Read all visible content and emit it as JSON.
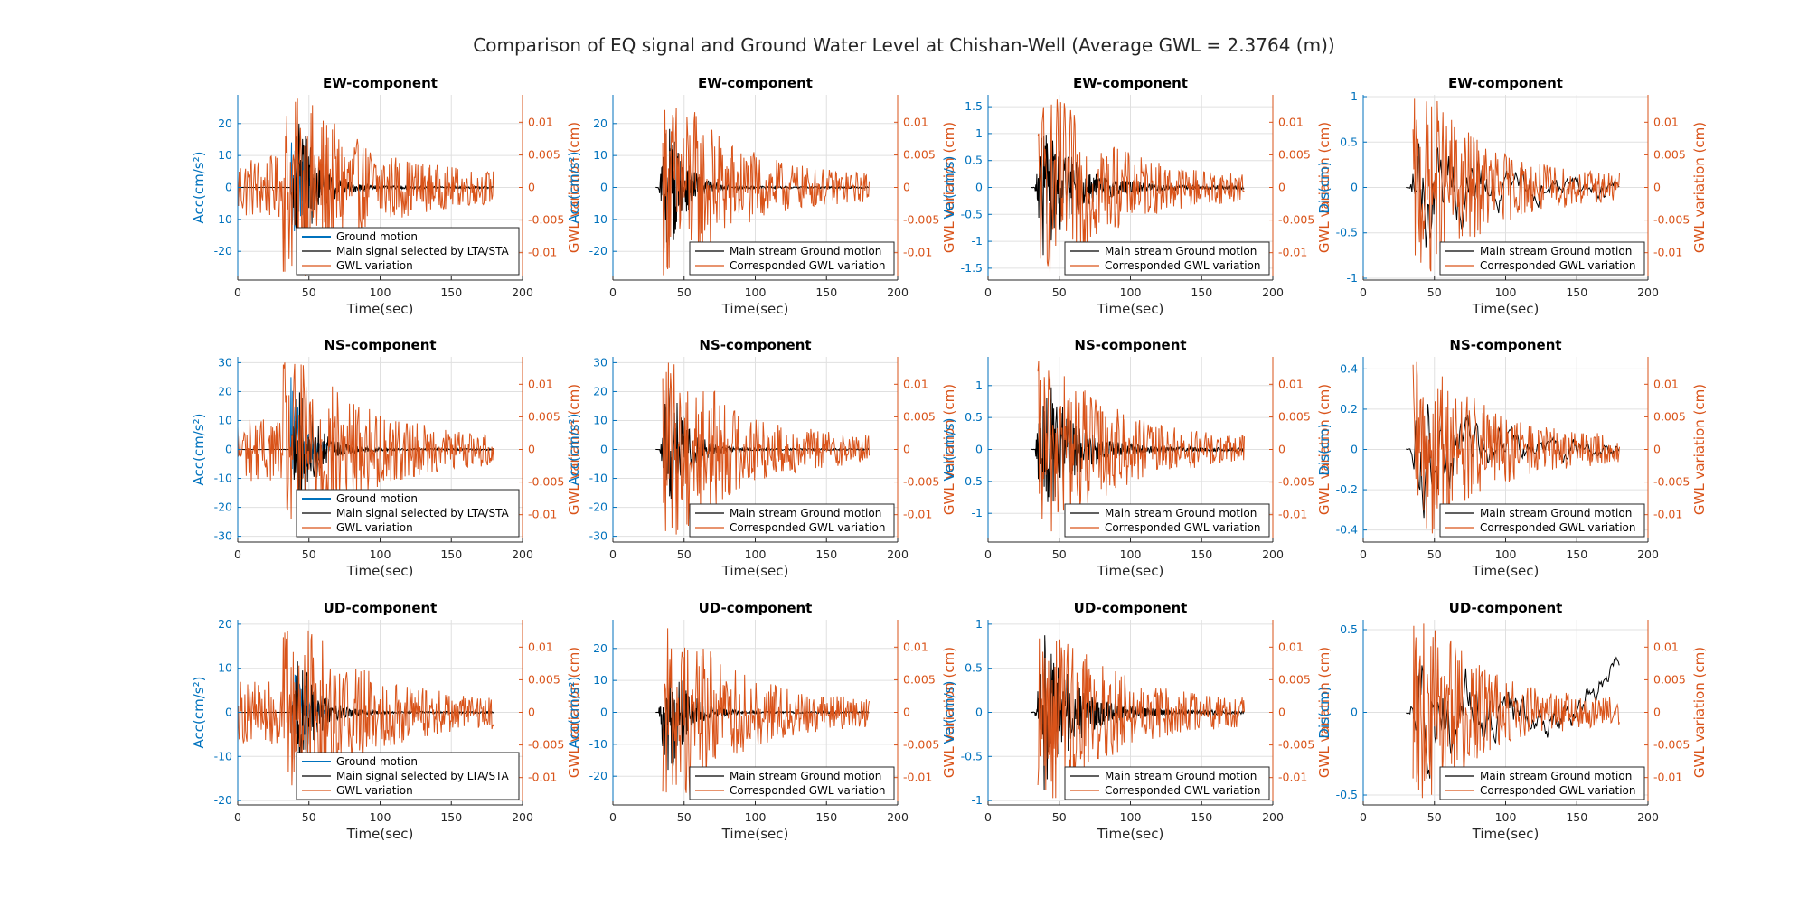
{
  "figure": {
    "title": "Comparison of EQ signal and Ground Water Level at Chishan-Well (Average GWL = 2.3764 (m))"
  },
  "colors": {
    "left_axis": "#0072BD",
    "right_axis": "#D95319",
    "ground_motion_blue": "#0072BD",
    "main_signal": "#000000",
    "gwl": "#D95319",
    "grid": "#E0E0E0"
  },
  "chart_data": [
    {
      "type": "line",
      "component": "EW",
      "title": "EW-component",
      "xlabel": "Time(sec)",
      "ylabel_left": "Acc(cm/s²)",
      "ylabel_right": "GWL variation (cm)",
      "xlim": [
        0,
        200
      ],
      "ylim_left": [
        -29,
        29
      ],
      "ylim_right": [
        -0.0142,
        0.0142
      ],
      "xticks": [
        0,
        50,
        100,
        150,
        200
      ],
      "yticks_left": [
        -20,
        -10,
        0,
        10,
        20
      ],
      "yticks_right": [
        -0.01,
        -0.005,
        0,
        0.005,
        0.01
      ],
      "ytick_labels_left": [
        "-20",
        "-10",
        "0",
        "10",
        "20"
      ],
      "ytick_labels_right": [
        "-0.01",
        "-0.005",
        "0",
        "0.005",
        "0.01"
      ],
      "grid": true,
      "legend_location": "bottom-right",
      "signal": {
        "t_start": 0,
        "t_end": 180,
        "onset": 37,
        "peak": 23,
        "decay": 13,
        "trail": 0.9
      },
      "gwl": {
        "t_start": 0,
        "t_end": 180,
        "amp": 0.0118,
        "base": 0.0019,
        "peak_time": 50,
        "decay": 45
      },
      "series": [
        {
          "name": "Ground motion",
          "color": "#0072BD"
        },
        {
          "name": "Main signal selected by LTA/STA",
          "color": "#000000"
        },
        {
          "name": "GWL variation",
          "color": "#D95319"
        }
      ]
    },
    {
      "type": "line",
      "component": "EW",
      "title": "EW-component",
      "xlabel": "Time(sec)",
      "ylabel_left": "Acc(cm/s²)",
      "ylabel_right": "GWL variation (cm)",
      "xlim": [
        0,
        200
      ],
      "ylim_left": [
        -29,
        29
      ],
      "ylim_right": [
        -0.0142,
        0.0142
      ],
      "xticks": [
        0,
        50,
        100,
        150,
        200
      ],
      "yticks_left": [
        -20,
        -10,
        0,
        10,
        20
      ],
      "yticks_right": [
        -0.01,
        -0.005,
        0,
        0.005,
        0.01
      ],
      "ytick_labels_left": [
        "-20",
        "-10",
        "0",
        "10",
        "20"
      ],
      "ytick_labels_right": [
        "-0.01",
        "-0.005",
        "0",
        "0.005",
        "0.01"
      ],
      "grid": true,
      "legend_location": "bottom-right",
      "signal": {
        "t_start": 30,
        "t_end": 180,
        "onset": 32,
        "peak": 24,
        "decay": 12,
        "trail": 0.8
      },
      "gwl": {
        "t_start": 35,
        "t_end": 180,
        "amp": 0.0118,
        "base": 0.0018,
        "peak_time": 52,
        "decay": 40
      },
      "series": [
        {
          "name": "Main stream Ground motion",
          "color": "#000000"
        },
        {
          "name": "Corresponded GWL variation",
          "color": "#D95319"
        }
      ]
    },
    {
      "type": "line",
      "component": "EW",
      "title": "EW-component",
      "xlabel": "Time(sec)",
      "ylabel_left": "Vel(cm/s)",
      "ylabel_right": "GWL variation (cm)",
      "xlim": [
        0,
        200
      ],
      "ylim_left": [
        -1.72,
        1.72
      ],
      "ylim_right": [
        -0.0142,
        0.0142
      ],
      "xticks": [
        0,
        50,
        100,
        150,
        200
      ],
      "yticks_left": [
        -1.5,
        -1,
        -0.5,
        0,
        0.5,
        1,
        1.5
      ],
      "yticks_right": [
        -0.01,
        -0.005,
        0,
        0.005,
        0.01
      ],
      "ytick_labels_left": [
        "-1.5",
        "-1",
        "-0.5",
        "0",
        "0.5",
        "1",
        "1.5"
      ],
      "ytick_labels_right": [
        "-0.01",
        "-0.005",
        "0",
        "0.005",
        "0.01"
      ],
      "grid": true,
      "legend_location": "bottom-right",
      "signal": {
        "t_start": 30,
        "t_end": 180,
        "onset": 33,
        "peak": 1.3,
        "decay": 22,
        "trail": 0.1
      },
      "gwl": {
        "t_start": 35,
        "t_end": 180,
        "amp": 0.0118,
        "base": 0.0018,
        "peak_time": 52,
        "decay": 40
      },
      "series": [
        {
          "name": "Main stream Ground motion",
          "color": "#000000"
        },
        {
          "name": "Corresponded GWL variation",
          "color": "#D95319"
        }
      ]
    },
    {
      "type": "line",
      "component": "EW",
      "title": "EW-component",
      "xlabel": "Time(sec)",
      "ylabel_left": "Dis(cm)",
      "ylabel_right": "GWL variation (cm)",
      "xlim": [
        0,
        200
      ],
      "ylim_left": [
        -1.02,
        1.02
      ],
      "ylim_right": [
        -0.0142,
        0.0142
      ],
      "xticks": [
        0,
        50,
        100,
        150,
        200
      ],
      "yticks_left": [
        -1,
        -0.5,
        0,
        0.5,
        1
      ],
      "yticks_right": [
        -0.01,
        -0.005,
        0,
        0.005,
        0.01
      ],
      "ytick_labels_left": [
        "-1",
        "-0.5",
        "0",
        "0.5",
        "1"
      ],
      "ytick_labels_right": [
        "-0.01",
        "-0.005",
        "0",
        "0.005",
        "0.01"
      ],
      "grid": true,
      "legend_location": "bottom-right",
      "signal": {
        "t_start": 30,
        "t_end": 180,
        "onset": 33,
        "peak": 0.85,
        "decay": 30,
        "trail": 0.25,
        "smooth": true
      },
      "gwl": {
        "t_start": 35,
        "t_end": 180,
        "amp": 0.0118,
        "base": 0.0018,
        "peak_time": 52,
        "decay": 40
      },
      "series": [
        {
          "name": "Main stream Ground motion",
          "color": "#000000"
        },
        {
          "name": "Corresponded GWL variation",
          "color": "#D95319"
        }
      ]
    },
    {
      "type": "line",
      "component": "NS",
      "title": "NS-component",
      "xlabel": "Time(sec)",
      "ylabel_left": "Acc(cm/s²)",
      "ylabel_right": "GWL variation (cm)",
      "xlim": [
        0,
        200
      ],
      "ylim_left": [
        -32,
        32
      ],
      "ylim_right": [
        -0.0142,
        0.0142
      ],
      "xticks": [
        0,
        50,
        100,
        150,
        200
      ],
      "yticks_left": [
        -30,
        -20,
        -10,
        0,
        10,
        20,
        30
      ],
      "yticks_right": [
        -0.01,
        -0.005,
        0,
        0.005,
        0.01
      ],
      "ytick_labels_left": [
        "-30",
        "-20",
        "-10",
        "0",
        "10",
        "20",
        "30"
      ],
      "ytick_labels_right": [
        "-0.01",
        "-0.005",
        "0",
        "0.005",
        "0.01"
      ],
      "grid": true,
      "legend_location": "bottom-right",
      "signal": {
        "t_start": 0,
        "t_end": 180,
        "onset": 37,
        "peak": 27,
        "decay": 12,
        "trail": 0.9
      },
      "gwl": {
        "t_start": 0,
        "t_end": 180,
        "amp": 0.0118,
        "base": 0.0019,
        "peak_time": 50,
        "decay": 45
      },
      "series": [
        {
          "name": "Ground motion",
          "color": "#0072BD"
        },
        {
          "name": "Main signal selected by LTA/STA",
          "color": "#000000"
        },
        {
          "name": "GWL variation",
          "color": "#D95319"
        }
      ]
    },
    {
      "type": "line",
      "component": "NS",
      "title": "NS-component",
      "xlabel": "Time(sec)",
      "ylabel_left": "Acc(cm/s²)",
      "ylabel_right": "GWL variation (cm)",
      "xlim": [
        0,
        200
      ],
      "ylim_left": [
        -32,
        32
      ],
      "ylim_right": [
        -0.0142,
        0.0142
      ],
      "xticks": [
        0,
        50,
        100,
        150,
        200
      ],
      "yticks_left": [
        -30,
        -20,
        -10,
        0,
        10,
        20,
        30
      ],
      "yticks_right": [
        -0.01,
        -0.005,
        0,
        0.005,
        0.01
      ],
      "ytick_labels_left": [
        "-30",
        "-20",
        "-10",
        "0",
        "10",
        "20",
        "30"
      ],
      "ytick_labels_right": [
        "-0.01",
        "-0.005",
        "0",
        "0.005",
        "0.01"
      ],
      "grid": true,
      "legend_location": "bottom-right",
      "signal": {
        "t_start": 30,
        "t_end": 180,
        "onset": 33,
        "peak": 27,
        "decay": 12,
        "trail": 0.8
      },
      "gwl": {
        "t_start": 35,
        "t_end": 180,
        "amp": 0.0118,
        "base": 0.0018,
        "peak_time": 52,
        "decay": 40
      },
      "series": [
        {
          "name": "Main stream Ground motion",
          "color": "#000000"
        },
        {
          "name": "Corresponded GWL variation",
          "color": "#D95319"
        }
      ]
    },
    {
      "type": "line",
      "component": "NS",
      "title": "NS-component",
      "xlabel": "Time(sec)",
      "ylabel_left": "Vel(cm/s)",
      "ylabel_right": "GWL variation (cm)",
      "xlim": [
        0,
        200
      ],
      "ylim_left": [
        -1.45,
        1.45
      ],
      "ylim_right": [
        -0.0142,
        0.0142
      ],
      "xticks": [
        0,
        50,
        100,
        150,
        200
      ],
      "yticks_left": [
        -1,
        -0.5,
        0,
        0.5,
        1
      ],
      "yticks_right": [
        -0.01,
        -0.005,
        0,
        0.005,
        0.01
      ],
      "ytick_labels_left": [
        "-1",
        "-0.5",
        "0",
        "0.5",
        "1"
      ],
      "ytick_labels_right": [
        "-0.01",
        "-0.005",
        "0",
        "0.005",
        "0.01"
      ],
      "grid": true,
      "legend_location": "bottom-right",
      "signal": {
        "t_start": 30,
        "t_end": 180,
        "onset": 33,
        "peak": 1.25,
        "decay": 20,
        "trail": 0.08
      },
      "gwl": {
        "t_start": 35,
        "t_end": 180,
        "amp": 0.0118,
        "base": 0.0018,
        "peak_time": 52,
        "decay": 40
      },
      "series": [
        {
          "name": "Main stream Ground motion",
          "color": "#000000"
        },
        {
          "name": "Corresponded GWL variation",
          "color": "#D95319"
        }
      ]
    },
    {
      "type": "line",
      "component": "NS",
      "title": "NS-component",
      "xlabel": "Time(sec)",
      "ylabel_left": "Dis(cm)",
      "ylabel_right": "GWL variation (cm)",
      "xlim": [
        0,
        200
      ],
      "ylim_left": [
        -0.46,
        0.46
      ],
      "ylim_right": [
        -0.0142,
        0.0142
      ],
      "xticks": [
        0,
        50,
        100,
        150,
        200
      ],
      "yticks_left": [
        -0.4,
        -0.2,
        0,
        0.2,
        0.4
      ],
      "yticks_right": [
        -0.01,
        -0.005,
        0,
        0.005,
        0.01
      ],
      "ytick_labels_left": [
        "-0.4",
        "-0.2",
        "0",
        "0.2",
        "0.4"
      ],
      "ytick_labels_right": [
        "-0.01",
        "-0.005",
        "0",
        "0.005",
        "0.01"
      ],
      "grid": true,
      "legend_location": "bottom-right",
      "signal": {
        "t_start": 30,
        "t_end": 180,
        "onset": 33,
        "peak": 0.35,
        "decay": 35,
        "trail": 0.1,
        "smooth": true
      },
      "gwl": {
        "t_start": 35,
        "t_end": 180,
        "amp": 0.0118,
        "base": 0.0018,
        "peak_time": 52,
        "decay": 40
      },
      "series": [
        {
          "name": "Main stream Ground motion",
          "color": "#000000"
        },
        {
          "name": "Corresponded GWL variation",
          "color": "#D95319"
        }
      ]
    },
    {
      "type": "line",
      "component": "UD",
      "title": "UD-component",
      "xlabel": "Time(sec)",
      "ylabel_left": "Acc(cm/s²)",
      "ylabel_right": "GWL variation (cm)",
      "xlim": [
        0,
        200
      ],
      "ylim_left": [
        -21,
        21
      ],
      "ylim_right": [
        -0.0142,
        0.0142
      ],
      "xticks": [
        0,
        50,
        100,
        150,
        200
      ],
      "yticks_left": [
        -20,
        -10,
        0,
        10,
        20
      ],
      "yticks_right": [
        -0.01,
        -0.005,
        0,
        0.005,
        0.01
      ],
      "ytick_labels_left": [
        "-20",
        "-10",
        "0",
        "10",
        "20"
      ],
      "ytick_labels_right": [
        "-0.01",
        "-0.005",
        "0",
        "0.005",
        "0.01"
      ],
      "grid": true,
      "legend_location": "bottom-right",
      "signal": {
        "t_start": 0,
        "t_end": 180,
        "onset": 37,
        "peak": 14,
        "decay": 13,
        "trail": 0.6
      },
      "gwl": {
        "t_start": 0,
        "t_end": 180,
        "amp": 0.0118,
        "base": 0.0019,
        "peak_time": 50,
        "decay": 45
      },
      "series": [
        {
          "name": "Ground motion",
          "color": "#0072BD"
        },
        {
          "name": "Main signal selected by LTA/STA",
          "color": "#000000"
        },
        {
          "name": "GWL variation",
          "color": "#D95319"
        }
      ]
    },
    {
      "type": "line",
      "component": "UD",
      "title": "UD-component",
      "xlabel": "Time(sec)",
      "ylabel_left": "Acc(cm/s²)",
      "ylabel_right": "GWL variation (cm)",
      "xlim": [
        0,
        200
      ],
      "ylim_left": [
        -29,
        29
      ],
      "ylim_right": [
        -0.0142,
        0.0142
      ],
      "xticks": [
        0,
        50,
        100,
        150,
        200
      ],
      "yticks_left": [
        -20,
        -10,
        0,
        10,
        20
      ],
      "yticks_right": [
        -0.01,
        -0.005,
        0,
        0.005,
        0.01
      ],
      "ytick_labels_left": [
        "-20",
        "-10",
        "0",
        "10",
        "20"
      ],
      "ytick_labels_right": [
        "-0.01",
        "-0.005",
        "0",
        "0.005",
        "0.01"
      ],
      "grid": true,
      "legend_location": "bottom-right",
      "signal": {
        "t_start": 30,
        "t_end": 180,
        "onset": 32,
        "peak": 24,
        "decay": 12,
        "trail": 0.8
      },
      "gwl": {
        "t_start": 35,
        "t_end": 180,
        "amp": 0.0118,
        "base": 0.0018,
        "peak_time": 52,
        "decay": 40
      },
      "series": [
        {
          "name": "Main stream Ground motion",
          "color": "#000000"
        },
        {
          "name": "Corresponded GWL variation",
          "color": "#D95319"
        }
      ]
    },
    {
      "type": "line",
      "component": "UD",
      "title": "UD-component",
      "xlabel": "Time(sec)",
      "ylabel_left": "Vel(cm/s)",
      "ylabel_right": "GWL variation (cm)",
      "xlim": [
        0,
        200
      ],
      "ylim_left": [
        -1.05,
        1.05
      ],
      "ylim_right": [
        -0.0142,
        0.0142
      ],
      "xticks": [
        0,
        50,
        100,
        150,
        200
      ],
      "yticks_left": [
        -1,
        -0.5,
        0,
        0.5,
        1
      ],
      "yticks_right": [
        -0.01,
        -0.005,
        0,
        0.005,
        0.01
      ],
      "ytick_labels_left": [
        "-1",
        "-0.5",
        "0",
        "0.5",
        "1"
      ],
      "ytick_labels_right": [
        "-0.01",
        "-0.005",
        "0",
        "0.005",
        "0.01"
      ],
      "grid": true,
      "legend_location": "bottom-right",
      "signal": {
        "t_start": 30,
        "t_end": 180,
        "onset": 33,
        "peak": 0.9,
        "decay": 22,
        "trail": 0.07
      },
      "gwl": {
        "t_start": 35,
        "t_end": 180,
        "amp": 0.0118,
        "base": 0.0018,
        "peak_time": 52,
        "decay": 40
      },
      "series": [
        {
          "name": "Main stream Ground motion",
          "color": "#000000"
        },
        {
          "name": "Corresponded GWL variation",
          "color": "#D95319"
        }
      ]
    },
    {
      "type": "line",
      "component": "UD",
      "title": "UD-component",
      "xlabel": "Time(sec)",
      "ylabel_left": "Dis(cm)",
      "ylabel_right": "GWL variation (cm)",
      "xlim": [
        0,
        200
      ],
      "ylim_left": [
        -0.56,
        0.56
      ],
      "ylim_right": [
        -0.0142,
        0.0142
      ],
      "xticks": [
        0,
        50,
        100,
        150,
        200
      ],
      "yticks_left": [
        -0.5,
        0,
        0.5
      ],
      "yticks_right": [
        -0.01,
        -0.005,
        0,
        0.005,
        0.01
      ],
      "ytick_labels_left": [
        "-0.5",
        "0",
        "0.5"
      ],
      "ytick_labels_right": [
        "-0.01",
        "-0.005",
        "0",
        "0.005",
        "0.01"
      ],
      "grid": true,
      "legend_location": "bottom-right",
      "signal": {
        "t_start": 30,
        "t_end": 180,
        "onset": 33,
        "peak": 0.4,
        "decay": 40,
        "trail": 0.2,
        "smooth": true,
        "end_value": 0.34
      },
      "gwl": {
        "t_start": 35,
        "t_end": 180,
        "amp": 0.0118,
        "base": 0.0018,
        "peak_time": 52,
        "decay": 40
      },
      "series": [
        {
          "name": "Main stream Ground motion",
          "color": "#000000"
        },
        {
          "name": "Corresponded GWL variation",
          "color": "#D95319"
        }
      ]
    }
  ]
}
